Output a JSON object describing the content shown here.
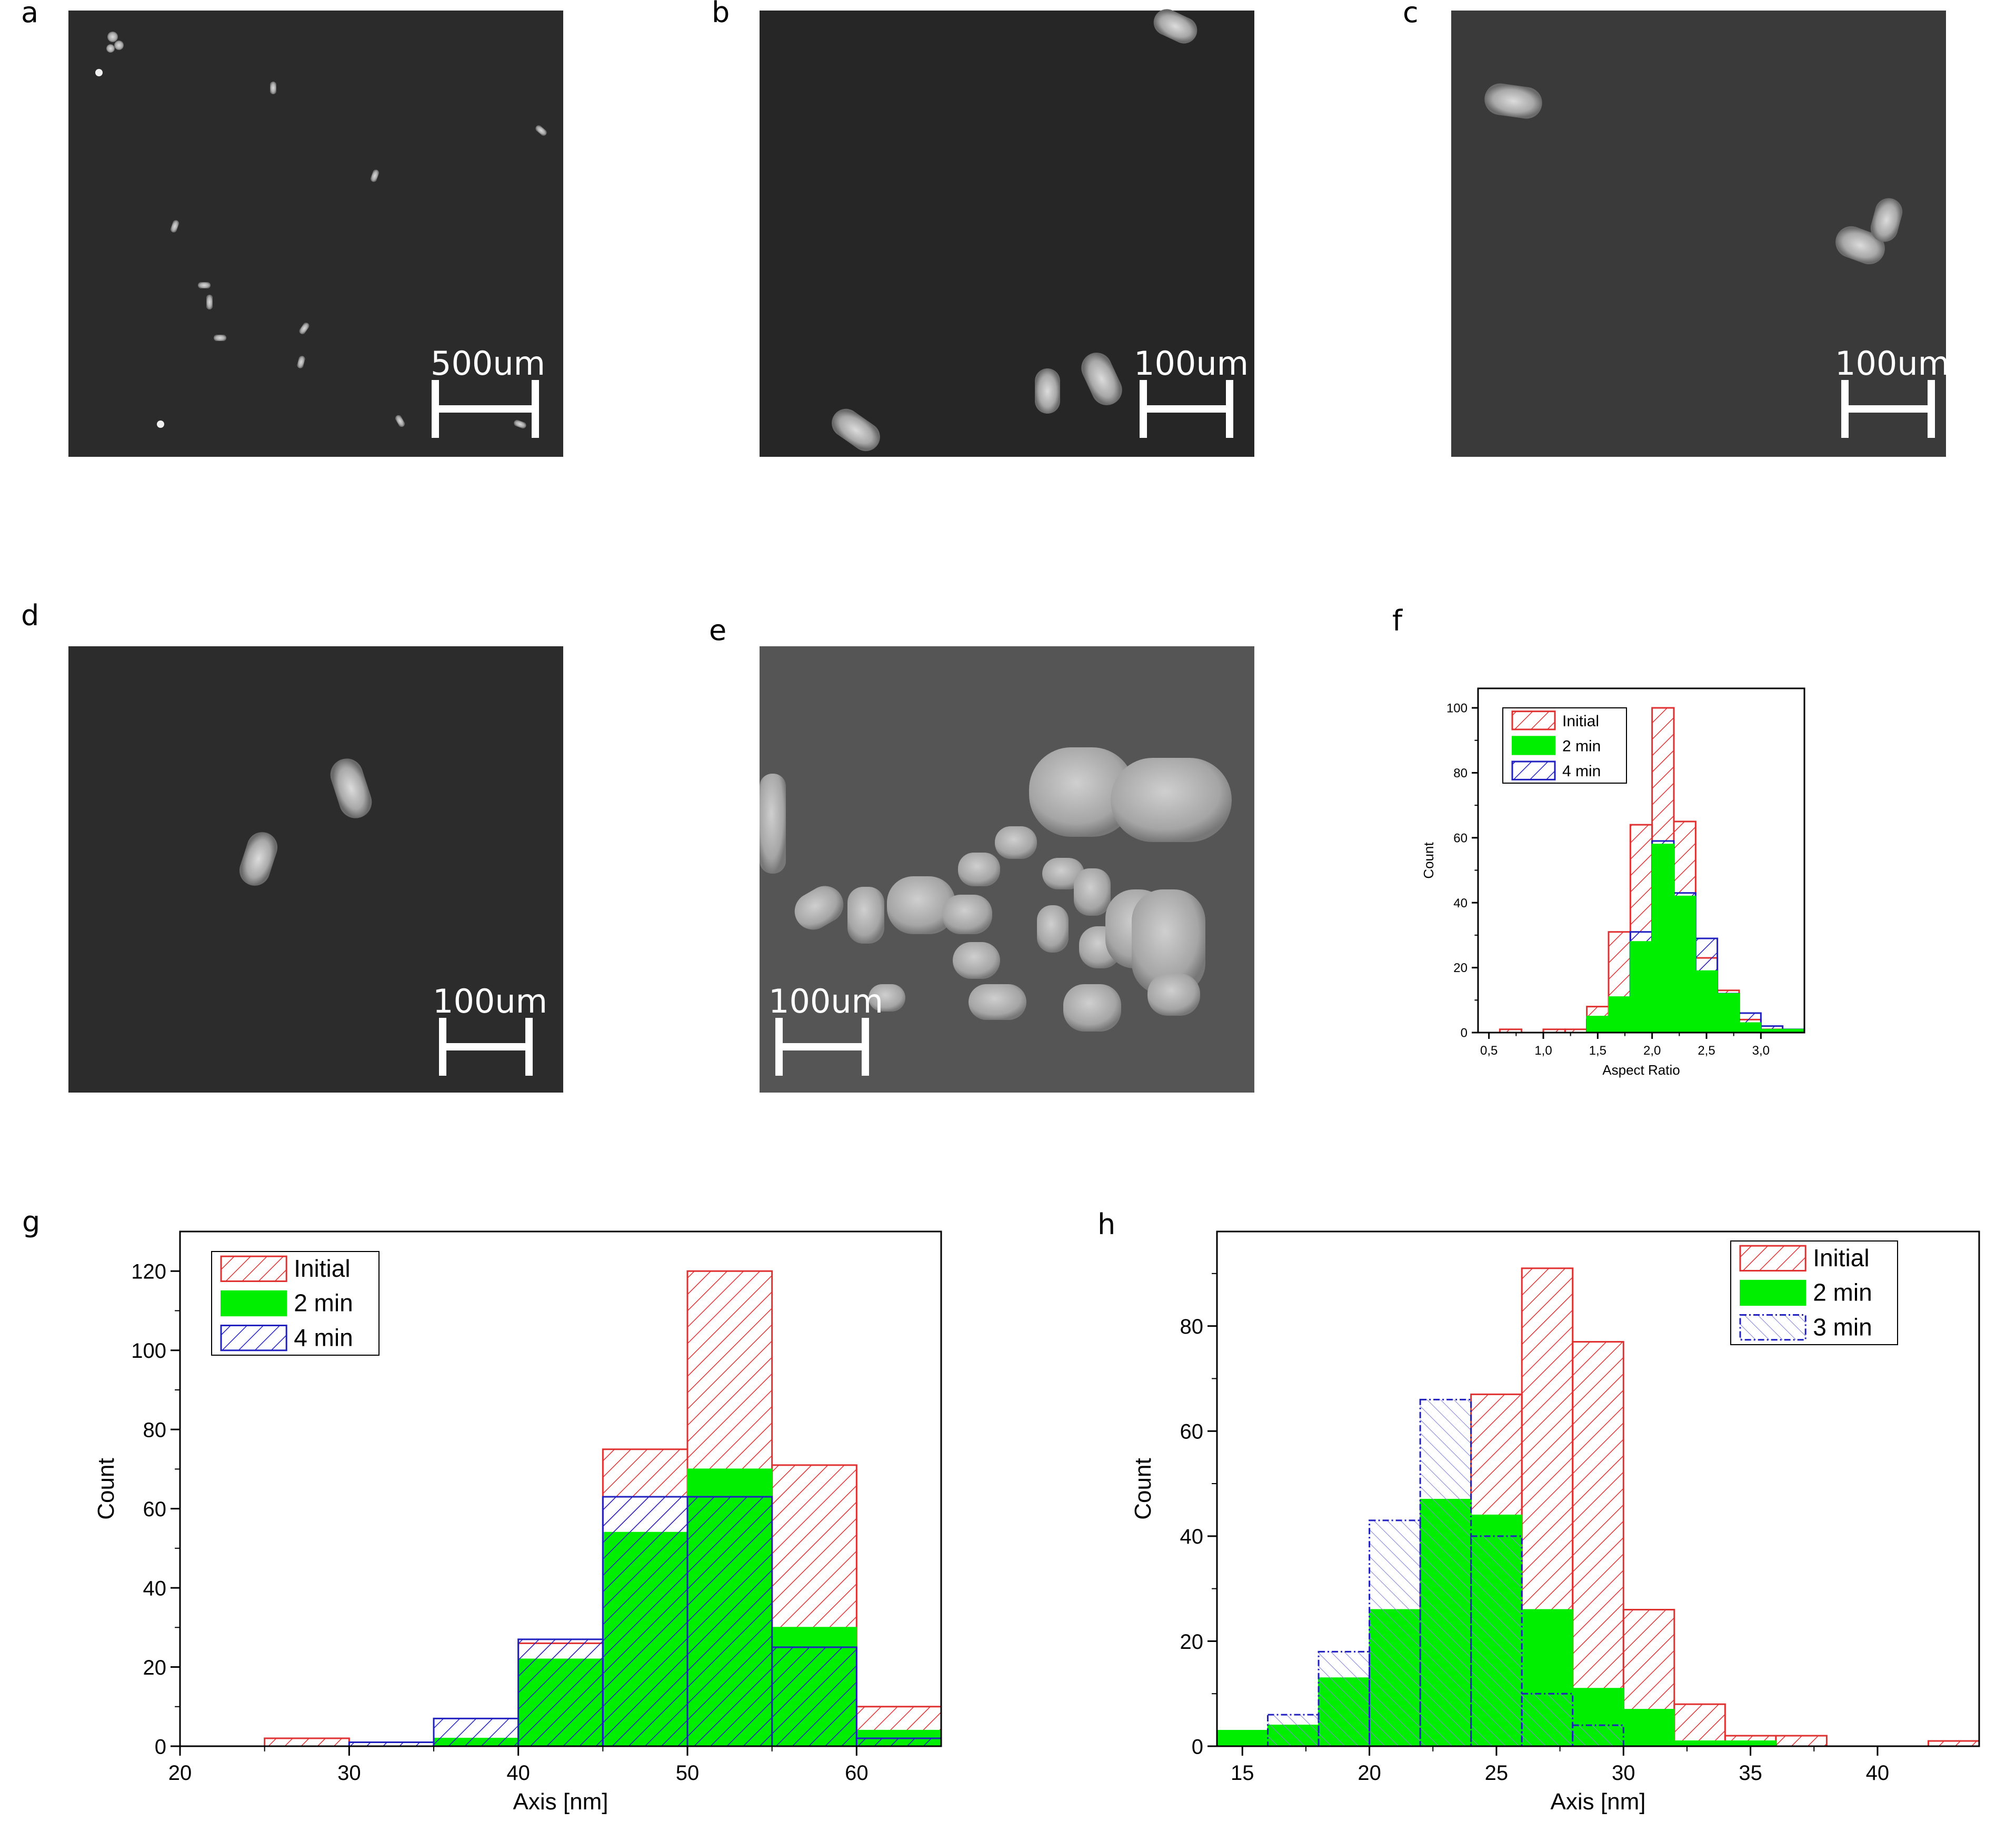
{
  "panels": [
    {
      "letter": "a",
      "scale_bar": "500um"
    },
    {
      "letter": "b",
      "scale_bar": "100um"
    },
    {
      "letter": "c",
      "scale_bar": "100um"
    },
    {
      "letter": "d",
      "scale_bar": "100um"
    },
    {
      "letter": "e",
      "scale_bar": "100um"
    },
    {
      "letter": "f"
    },
    {
      "letter": "g"
    },
    {
      "letter": "h"
    }
  ],
  "colors": {
    "initial": "#e03030",
    "two_min": "#00ee00",
    "four_min": "#2020c0",
    "three_min": "#2020c0"
  },
  "chart_data": [
    {
      "panel": "f",
      "type": "bar",
      "xlabel": "Aspect Ratio",
      "ylabel": "Count",
      "xlim": [
        0.4,
        3.4
      ],
      "ylim": [
        0,
        106
      ],
      "xticks": [
        0.5,
        1.0,
        1.5,
        2.0,
        2.5,
        3.0
      ],
      "xtick_labels": [
        "0,5",
        "1,0",
        "1,5",
        "2,0",
        "2,5",
        "3,0"
      ],
      "yticks": [
        0,
        20,
        40,
        60,
        80,
        100
      ],
      "bin_edges": [
        0.6,
        0.8,
        1.0,
        1.2,
        1.4,
        1.6,
        1.8,
        2.0,
        2.2,
        2.4,
        2.6,
        2.8,
        3.0,
        3.2,
        3.4
      ],
      "legend_position": "top-left",
      "series": [
        {
          "name": "Initial",
          "values": [
            1,
            0,
            1,
            1,
            8,
            31,
            64,
            100,
            65,
            23,
            13,
            4,
            1,
            0
          ]
        },
        {
          "name": "2 min",
          "values": [
            0,
            0,
            0,
            0,
            5,
            11,
            28,
            58,
            42,
            19,
            12,
            3,
            1,
            1
          ]
        },
        {
          "name": "4 min",
          "values": [
            0,
            0,
            0,
            0,
            4,
            5,
            31,
            59,
            43,
            29,
            12,
            6,
            2,
            1
          ]
        }
      ]
    },
    {
      "panel": "g",
      "type": "bar",
      "xlabel": "Axis [nm]",
      "ylabel": "Count",
      "xlim": [
        20,
        65
      ],
      "ylim": [
        0,
        130
      ],
      "xticks": [
        20,
        30,
        40,
        50,
        60
      ],
      "yticks": [
        0,
        20,
        40,
        60,
        80,
        100,
        120
      ],
      "bin_edges": [
        25,
        30,
        35,
        40,
        45,
        50,
        55,
        60,
        65
      ],
      "legend_position": "top-left",
      "series": [
        {
          "name": "Initial",
          "values": [
            2,
            0,
            0,
            26,
            75,
            120,
            71,
            10
          ]
        },
        {
          "name": "2 min",
          "values": [
            0,
            0,
            2,
            22,
            54,
            70,
            30,
            4
          ]
        },
        {
          "name": "4 min",
          "values": [
            0,
            1,
            7,
            27,
            63,
            63,
            25,
            2
          ]
        }
      ]
    },
    {
      "panel": "h",
      "type": "bar",
      "xlabel": "Axis [nm]",
      "ylabel": "Count",
      "xlim": [
        14,
        44
      ],
      "ylim": [
        0,
        98
      ],
      "xticks": [
        15,
        20,
        25,
        30,
        35,
        40
      ],
      "yticks": [
        0,
        20,
        40,
        60,
        80
      ],
      "bin_edges": [
        14,
        16,
        18,
        20,
        22,
        24,
        26,
        28,
        30,
        32,
        34,
        36,
        38,
        40,
        42,
        44
      ],
      "legend_position": "top-right",
      "series": [
        {
          "name": "Initial",
          "values": [
            0,
            0,
            0,
            0,
            30,
            67,
            91,
            77,
            26,
            8,
            2,
            2,
            0,
            0,
            1
          ]
        },
        {
          "name": "2 min",
          "values": [
            3,
            4,
            13,
            26,
            47,
            44,
            26,
            11,
            7,
            1,
            1,
            0,
            0,
            0,
            0
          ]
        },
        {
          "name": "3 min",
          "values": [
            0,
            6,
            18,
            43,
            66,
            40,
            10,
            4,
            0,
            0,
            0,
            0,
            0,
            0,
            0
          ]
        }
      ]
    }
  ]
}
